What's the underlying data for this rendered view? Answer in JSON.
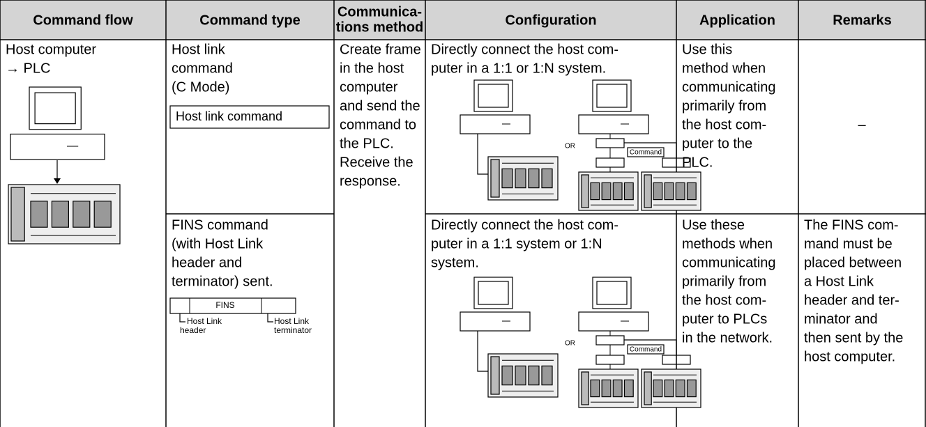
{
  "header": [
    [
      "Command flow"
    ],
    [
      "Command type"
    ],
    [
      "Communica-",
      "tions method"
    ],
    [
      "Configuration"
    ],
    [
      "Application"
    ],
    [
      "Remarks"
    ]
  ],
  "command_flow": [
    "Host computer",
    "→ PLC"
  ],
  "communications_method": [
    "Create frame",
    "in the host",
    "computer",
    "and send the",
    "command to",
    "the PLC.",
    "Receive the",
    "response."
  ],
  "rows": [
    {
      "command_type": [
        "Host link",
        "command",
        "(C Mode)"
      ],
      "command_box": "Host link command",
      "configuration": [
        "Directly connect the host com-",
        "puter in a 1:1 or 1:N system."
      ],
      "diagram": {
        "or": "OR",
        "command": "Command"
      },
      "application": [
        "Use this",
        "method when",
        "communicating",
        "primarily from",
        "the host com-",
        "puter to the",
        "PLC."
      ],
      "remarks": [
        "–"
      ]
    },
    {
      "command_type": [
        "FINS command",
        "(with Host Link",
        "header and",
        "terminator) sent."
      ],
      "frame": {
        "label": "FINS",
        "header": [
          "Host Link",
          "header"
        ],
        "terminator": [
          "Host Link",
          "terminator"
        ]
      },
      "configuration": [
        "Directly connect the host com-",
        "puter in a 1:1 system or 1:N",
        "system."
      ],
      "diagram": {
        "or": "OR",
        "command": "Command"
      },
      "application": [
        "Use these",
        "methods when",
        "communicating",
        "primarily from",
        "the host com-",
        "puter to PLCs",
        "in the network."
      ],
      "remarks": [
        "The FINS com-",
        "mand must be",
        "placed between",
        "a Host Link",
        "header and ter-",
        "minator and",
        "then sent by the",
        "host computer."
      ]
    }
  ]
}
